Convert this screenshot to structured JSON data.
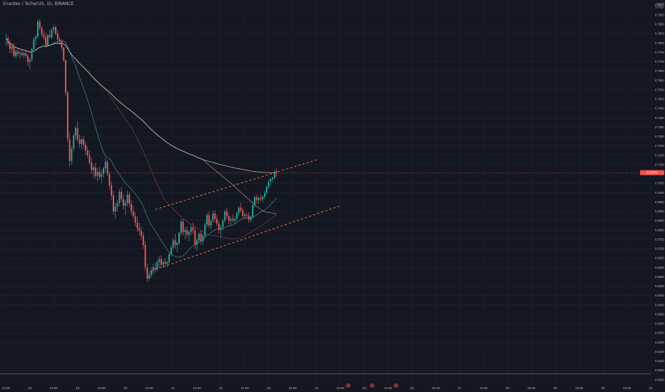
{
  "header": {
    "symbol_title": "Shardex / TetherUS, 1h, BINANCE"
  },
  "price_scale": {
    "currency": "USDT",
    "currency_sub": "ui trade"
  },
  "colors": {
    "background": "#131722",
    "grid": "#1f2430",
    "bull": "#26a69a",
    "bear": "#ef5350",
    "ma_fast": "#4a8a82",
    "ma_mid": "#7a3a48",
    "ma_slow": "#9b8f7a",
    "ma_long": "#c7c2b8",
    "channel": "#f2704a",
    "price_line": "#ef5350",
    "support_line": "#787b86"
  },
  "chart_data": {
    "type": "candlestick",
    "y_ticks": [
      "0.8000",
      "0.7950",
      "0.7900",
      "0.7850",
      "0.7800",
      "0.7750",
      "0.7700",
      "0.7650",
      "0.7600",
      "0.7550",
      "0.7500",
      "0.7450",
      "0.7400",
      "0.7350",
      "0.7300",
      "0.7250",
      "0.7200",
      "0.7150",
      "0.7100",
      "0.7050",
      "0.7000",
      "0.6950",
      "0.6900",
      "0.6850",
      "0.6800",
      "0.6750",
      "0.6700",
      "0.6650",
      "0.6600",
      "0.6550",
      "0.6500",
      "0.6450",
      "0.6400",
      "0.6350",
      "0.6300",
      "0.6250",
      "0.6200",
      "0.6150",
      "0.6100",
      "0.6050",
      "0.6000"
    ],
    "ylim": [
      0.598,
      0.803
    ],
    "x_ticks": [
      "12:00",
      "18",
      "12:00",
      "19",
      "12:00",
      "20",
      "12:00",
      "21",
      "12:00",
      "22",
      "12:00",
      "23",
      "12:00",
      "24",
      "12:00",
      "25",
      "12:00",
      "26",
      "12:00",
      "27",
      "12:00",
      "28",
      "12:00",
      "29",
      "12:00",
      "30",
      "12:00",
      "31"
    ],
    "x_tick_indices": [
      0,
      12,
      24,
      36,
      48,
      60,
      72,
      84,
      96,
      108,
      120,
      132,
      144,
      156,
      168,
      180,
      192,
      204,
      216,
      228,
      240,
      252,
      264,
      276,
      288,
      300,
      312,
      324
    ],
    "x_index_range": [
      -3,
      324
    ],
    "current_price": 0.7107,
    "current_price_label": "0.71070",
    "support_level": 0.6032,
    "candles": [
      [
        0.7822,
        0.7848,
        0.7785,
        0.7825
      ],
      [
        0.7825,
        0.784,
        0.7783,
        0.7798
      ],
      [
        0.7798,
        0.7815,
        0.7745,
        0.7768
      ],
      [
        0.7768,
        0.7795,
        0.7745,
        0.7782
      ],
      [
        0.7782,
        0.78,
        0.772,
        0.773
      ],
      [
        0.773,
        0.7765,
        0.7715,
        0.7755
      ],
      [
        0.7755,
        0.777,
        0.773,
        0.7742
      ],
      [
        0.7742,
        0.776,
        0.7712,
        0.7748
      ],
      [
        0.7748,
        0.7762,
        0.7725,
        0.7735
      ],
      [
        0.7735,
        0.7758,
        0.7715,
        0.7745
      ],
      [
        0.7745,
        0.776,
        0.772,
        0.7732
      ],
      [
        0.7732,
        0.774,
        0.768,
        0.77
      ],
      [
        0.77,
        0.772,
        0.766,
        0.7712
      ],
      [
        0.7712,
        0.7775,
        0.77,
        0.7768
      ],
      [
        0.7768,
        0.783,
        0.7755,
        0.782
      ],
      [
        0.782,
        0.7845,
        0.779,
        0.7835
      ],
      [
        0.7835,
        0.7925,
        0.7822,
        0.7915
      ],
      [
        0.7915,
        0.793,
        0.7865,
        0.788
      ],
      [
        0.788,
        0.789,
        0.783,
        0.7845
      ],
      [
        0.7845,
        0.7865,
        0.7818,
        0.7832
      ],
      [
        0.7832,
        0.7858,
        0.7775,
        0.779
      ],
      [
        0.779,
        0.7848,
        0.778,
        0.7842
      ],
      [
        0.7842,
        0.787,
        0.7825,
        0.783
      ],
      [
        0.783,
        0.788,
        0.782,
        0.7872
      ],
      [
        0.7872,
        0.7898,
        0.7855,
        0.7885
      ],
      [
        0.7885,
        0.7892,
        0.784,
        0.785
      ],
      [
        0.785,
        0.787,
        0.7805,
        0.782
      ],
      [
        0.782,
        0.7835,
        0.779,
        0.781
      ],
      [
        0.781,
        0.782,
        0.776,
        0.7775
      ],
      [
        0.7775,
        0.778,
        0.77,
        0.7708
      ],
      [
        0.7708,
        0.7712,
        0.752,
        0.7535
      ],
      [
        0.7535,
        0.7545,
        0.727,
        0.7285
      ],
      [
        0.7285,
        0.732,
        0.714,
        0.717
      ],
      [
        0.717,
        0.725,
        0.715,
        0.7235
      ],
      [
        0.7235,
        0.732,
        0.722,
        0.7305
      ],
      [
        0.7305,
        0.736,
        0.728,
        0.7345
      ],
      [
        0.7345,
        0.738,
        0.727,
        0.7285
      ],
      [
        0.7285,
        0.731,
        0.724,
        0.726
      ],
      [
        0.726,
        0.73,
        0.723,
        0.7285
      ],
      [
        0.7285,
        0.7305,
        0.724,
        0.7255
      ],
      [
        0.7255,
        0.7275,
        0.72,
        0.7225
      ],
      [
        0.7225,
        0.7245,
        0.7185,
        0.72
      ],
      [
        0.72,
        0.723,
        0.715,
        0.716
      ],
      [
        0.716,
        0.7185,
        0.71,
        0.712
      ],
      [
        0.712,
        0.715,
        0.708,
        0.7135
      ],
      [
        0.7135,
        0.716,
        0.7075,
        0.709
      ],
      [
        0.709,
        0.713,
        0.706,
        0.711
      ],
      [
        0.711,
        0.714,
        0.707,
        0.7085
      ],
      [
        0.7085,
        0.712,
        0.705,
        0.71
      ],
      [
        0.71,
        0.714,
        0.708,
        0.713
      ],
      [
        0.713,
        0.719,
        0.711,
        0.7165
      ],
      [
        0.7165,
        0.7175,
        0.709,
        0.71
      ],
      [
        0.71,
        0.7115,
        0.702,
        0.704
      ],
      [
        0.704,
        0.706,
        0.696,
        0.6985
      ],
      [
        0.6985,
        0.701,
        0.688,
        0.69
      ],
      [
        0.69,
        0.6945,
        0.686,
        0.6925
      ],
      [
        0.6925,
        0.696,
        0.69,
        0.6945
      ],
      [
        0.6945,
        0.702,
        0.693,
        0.7005
      ],
      [
        0.7005,
        0.703,
        0.695,
        0.6965
      ],
      [
        0.6965,
        0.699,
        0.691,
        0.693
      ],
      [
        0.693,
        0.696,
        0.688,
        0.6945
      ],
      [
        0.6945,
        0.701,
        0.6925,
        0.699
      ],
      [
        0.699,
        0.7005,
        0.692,
        0.694
      ],
      [
        0.694,
        0.696,
        0.688,
        0.69
      ],
      [
        0.69,
        0.693,
        0.686,
        0.6875
      ],
      [
        0.6875,
        0.6895,
        0.682,
        0.684
      ],
      [
        0.684,
        0.687,
        0.679,
        0.681
      ],
      [
        0.681,
        0.684,
        0.677,
        0.6795
      ],
      [
        0.6795,
        0.682,
        0.675,
        0.677
      ],
      [
        0.677,
        0.679,
        0.67,
        0.672
      ],
      [
        0.672,
        0.674,
        0.658,
        0.66
      ],
      [
        0.66,
        0.662,
        0.652,
        0.654
      ],
      [
        0.654,
        0.658,
        0.653,
        0.656
      ],
      [
        0.656,
        0.66,
        0.6545,
        0.6585
      ],
      [
        0.6585,
        0.662,
        0.656,
        0.66
      ],
      [
        0.66,
        0.6625,
        0.657,
        0.659
      ],
      [
        0.659,
        0.664,
        0.658,
        0.663
      ],
      [
        0.663,
        0.666,
        0.66,
        0.6645
      ],
      [
        0.6645,
        0.6665,
        0.66,
        0.6615
      ],
      [
        0.6615,
        0.664,
        0.6595,
        0.663
      ],
      [
        0.663,
        0.665,
        0.6605,
        0.662
      ],
      [
        0.662,
        0.664,
        0.66,
        0.6628
      ],
      [
        0.6628,
        0.668,
        0.662,
        0.667
      ],
      [
        0.667,
        0.672,
        0.666,
        0.6705
      ],
      [
        0.6705,
        0.676,
        0.669,
        0.6745
      ],
      [
        0.6745,
        0.678,
        0.67,
        0.672
      ],
      [
        0.672,
        0.674,
        0.668,
        0.673
      ],
      [
        0.673,
        0.679,
        0.672,
        0.6785
      ],
      [
        0.6785,
        0.686,
        0.677,
        0.6845
      ],
      [
        0.6845,
        0.686,
        0.677,
        0.679
      ],
      [
        0.679,
        0.6815,
        0.675,
        0.68
      ],
      [
        0.68,
        0.682,
        0.676,
        0.6775
      ],
      [
        0.6775,
        0.68,
        0.674,
        0.679
      ],
      [
        0.679,
        0.683,
        0.677,
        0.6815
      ],
      [
        0.6815,
        0.684,
        0.678,
        0.6798
      ],
      [
        0.6798,
        0.6815,
        0.67,
        0.672
      ],
      [
        0.672,
        0.676,
        0.669,
        0.6745
      ],
      [
        0.6745,
        0.679,
        0.673,
        0.678
      ],
      [
        0.678,
        0.68,
        0.672,
        0.674
      ],
      [
        0.674,
        0.678,
        0.672,
        0.677
      ],
      [
        0.677,
        0.684,
        0.676,
        0.683
      ],
      [
        0.683,
        0.689,
        0.6815,
        0.688
      ],
      [
        0.688,
        0.69,
        0.681,
        0.6825
      ],
      [
        0.6825,
        0.686,
        0.68,
        0.685
      ],
      [
        0.685,
        0.6905,
        0.684,
        0.689
      ],
      [
        0.689,
        0.6905,
        0.684,
        0.686
      ],
      [
        0.686,
        0.688,
        0.682,
        0.6835
      ],
      [
        0.6835,
        0.685,
        0.678,
        0.68
      ],
      [
        0.68,
        0.683,
        0.676,
        0.6815
      ],
      [
        0.6815,
        0.686,
        0.68,
        0.685
      ],
      [
        0.685,
        0.691,
        0.684,
        0.69
      ],
      [
        0.69,
        0.692,
        0.686,
        0.6875
      ],
      [
        0.6875,
        0.689,
        0.683,
        0.685
      ],
      [
        0.685,
        0.687,
        0.682,
        0.686
      ],
      [
        0.686,
        0.6885,
        0.684,
        0.6852
      ],
      [
        0.6852,
        0.687,
        0.683,
        0.686
      ],
      [
        0.686,
        0.69,
        0.6845,
        0.689
      ],
      [
        0.689,
        0.693,
        0.6875,
        0.692
      ],
      [
        0.692,
        0.6945,
        0.6895,
        0.6905
      ],
      [
        0.6905,
        0.692,
        0.686,
        0.6875
      ],
      [
        0.6875,
        0.689,
        0.686,
        0.6882
      ],
      [
        0.6882,
        0.6895,
        0.6865,
        0.6878
      ],
      [
        0.6878,
        0.6895,
        0.684,
        0.6855
      ],
      [
        0.6855,
        0.688,
        0.684,
        0.687
      ],
      [
        0.687,
        0.695,
        0.686,
        0.6935
      ],
      [
        0.6935,
        0.6985,
        0.692,
        0.6975
      ],
      [
        0.6975,
        0.699,
        0.694,
        0.696
      ],
      [
        0.696,
        0.698,
        0.694,
        0.6972
      ],
      [
        0.6972,
        0.699,
        0.6955,
        0.6965
      ],
      [
        0.6965,
        0.6985,
        0.695,
        0.6978
      ],
      [
        0.6978,
        0.701,
        0.6965,
        0.6998
      ],
      [
        0.6998,
        0.704,
        0.699,
        0.703
      ],
      [
        0.703,
        0.707,
        0.702,
        0.706
      ],
      [
        0.706,
        0.708,
        0.704,
        0.7072
      ],
      [
        0.7072,
        0.7085,
        0.7055,
        0.708
      ],
      [
        0.708,
        0.7125,
        0.707,
        0.7112
      ],
      [
        0.7112,
        0.713,
        0.7085,
        0.7107
      ]
    ]
  }
}
